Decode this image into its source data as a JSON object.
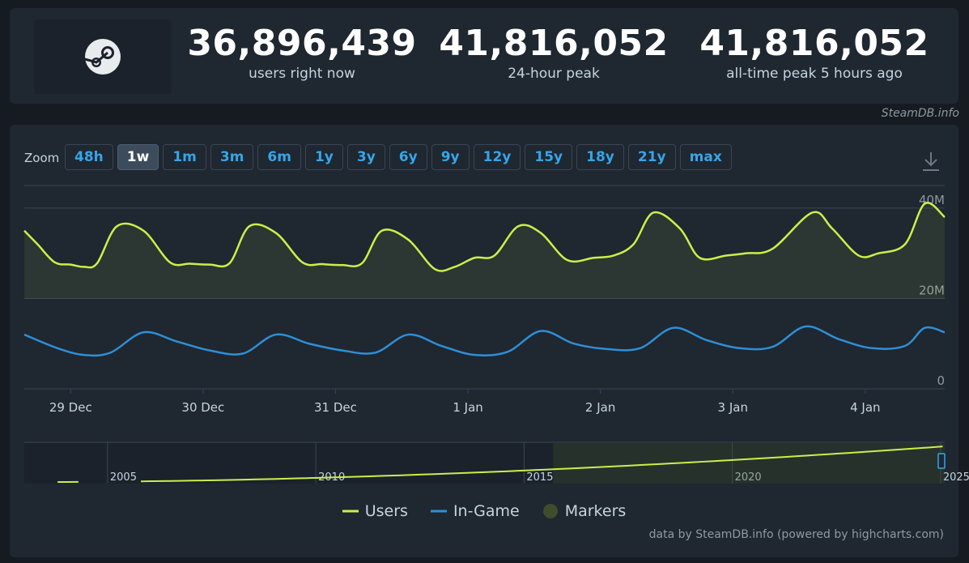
{
  "header": {
    "stats": [
      {
        "value": "36,896,439",
        "label": "users right now"
      },
      {
        "value": "41,816,052",
        "label": "24-hour peak"
      },
      {
        "value": "41,816,052",
        "label": "all-time peak 5 hours ago"
      }
    ]
  },
  "site_credit": "SteamDB.info",
  "zoom": {
    "label": "Zoom",
    "buttons": [
      "48h",
      "1w",
      "1m",
      "3m",
      "6m",
      "1y",
      "3y",
      "6y",
      "9y",
      "12y",
      "15y",
      "18y",
      "21y",
      "max"
    ],
    "active": "1w"
  },
  "footer_credit": "data by SteamDB.info (powered by highcharts.com)",
  "colors": {
    "users": "#c9f04a",
    "in_game": "#2e8fd6",
    "markers": "#3f4d2c",
    "accent": "#35a5e8"
  },
  "chart_data": {
    "type": "line",
    "ylim": [
      0,
      45000000
    ],
    "y_ticks": [
      {
        "value": 0,
        "label": "0"
      },
      {
        "value": 20000000,
        "label": "20M"
      },
      {
        "value": 40000000,
        "label": "40M"
      }
    ],
    "x_ticks": [
      "29 Dec",
      "30 Dec",
      "31 Dec",
      "1 Jan",
      "2 Jan",
      "3 Jan",
      "4 Jan"
    ],
    "x_range_days": [
      28.65,
      35.6
    ],
    "series": [
      {
        "name": "Users",
        "x": [
          28.65,
          28.75,
          28.88,
          29.0,
          29.1,
          29.2,
          29.35,
          29.55,
          29.75,
          29.9,
          30.05,
          30.2,
          30.35,
          30.55,
          30.75,
          30.9,
          31.05,
          31.2,
          31.35,
          31.55,
          31.75,
          31.9,
          32.05,
          32.2,
          32.38,
          32.55,
          32.75,
          32.95,
          33.1,
          33.25,
          33.4,
          33.6,
          33.75,
          33.95,
          34.1,
          34.3,
          34.6,
          34.75,
          34.95,
          35.1,
          35.3,
          35.45,
          35.6
        ],
        "y": [
          35000000,
          32000000,
          28000000,
          27500000,
          27000000,
          27800000,
          36000000,
          35000000,
          28000000,
          27700000,
          27500000,
          27800000,
          36000000,
          34500000,
          28000000,
          27600000,
          27400000,
          27800000,
          35000000,
          33000000,
          26500000,
          27000000,
          29000000,
          29500000,
          36000000,
          34500000,
          28500000,
          29000000,
          29500000,
          32000000,
          39000000,
          35500000,
          29000000,
          29500000,
          30000000,
          31000000,
          39000000,
          35500000,
          29500000,
          30000000,
          32000000,
          41000000,
          38000000
        ]
      },
      {
        "name": "In-Game",
        "x": [
          28.65,
          28.9,
          29.1,
          29.3,
          29.55,
          29.8,
          30.05,
          30.3,
          30.55,
          30.8,
          31.05,
          31.3,
          31.55,
          31.8,
          32.05,
          32.3,
          32.55,
          32.8,
          33.05,
          33.3,
          33.55,
          33.8,
          34.05,
          34.3,
          34.55,
          34.8,
          35.05,
          35.3,
          35.45,
          35.6
        ],
        "y": [
          12000000,
          9000000,
          7500000,
          8000000,
          12500000,
          10500000,
          8500000,
          7800000,
          12000000,
          10000000,
          8500000,
          8000000,
          12000000,
          9500000,
          7500000,
          8200000,
          12800000,
          10000000,
          8800000,
          9000000,
          13500000,
          10800000,
          9000000,
          9300000,
          13800000,
          11000000,
          9000000,
          9500000,
          13500000,
          12500000
        ]
      }
    ],
    "navigator": {
      "x_ticks": [
        "2005",
        "2010",
        "2015",
        "2020",
        "2025"
      ],
      "year_range": [
        2003.0,
        2025.1
      ]
    },
    "legend": [
      "Users",
      "In-Game",
      "Markers"
    ],
    "legend_placement": "bottom"
  }
}
